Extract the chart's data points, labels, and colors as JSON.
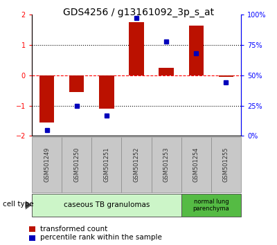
{
  "title": "GDS4256 / g13161092_3p_s_at",
  "samples": [
    "GSM501249",
    "GSM501250",
    "GSM501251",
    "GSM501252",
    "GSM501253",
    "GSM501254",
    "GSM501255"
  ],
  "red_values": [
    -1.55,
    -0.55,
    -1.1,
    1.75,
    0.25,
    1.65,
    -0.05
  ],
  "blue_values_pct": [
    5,
    25,
    17,
    97,
    78,
    68,
    44
  ],
  "ylim": [
    -2,
    2
  ],
  "y2lim": [
    0,
    100
  ],
  "yticks": [
    -2,
    -1,
    0,
    1,
    2
  ],
  "y2ticks": [
    0,
    25,
    50,
    75,
    100
  ],
  "y2ticklabels": [
    "0%",
    "25%",
    "50%",
    "75%",
    "100%"
  ],
  "hlines_black": [
    -1,
    1
  ],
  "hline_red": 0,
  "group1_count": 5,
  "group2_count": 2,
  "group1_label": "caseous TB granulomas",
  "group2_label": "normal lung\nparenchyma",
  "group1_color": "#ccf5c8",
  "group2_color": "#55bb44",
  "cell_type_label": "cell type",
  "legend_red_label": "transformed count",
  "legend_blue_label": "percentile rank within the sample",
  "bar_color": "#bb1100",
  "dot_color": "#0000bb",
  "sample_box_color": "#c8c8c8",
  "bar_width": 0.5,
  "title_fontsize": 10,
  "tick_fontsize": 7,
  "sample_fontsize": 6,
  "legend_fontsize": 7.5
}
